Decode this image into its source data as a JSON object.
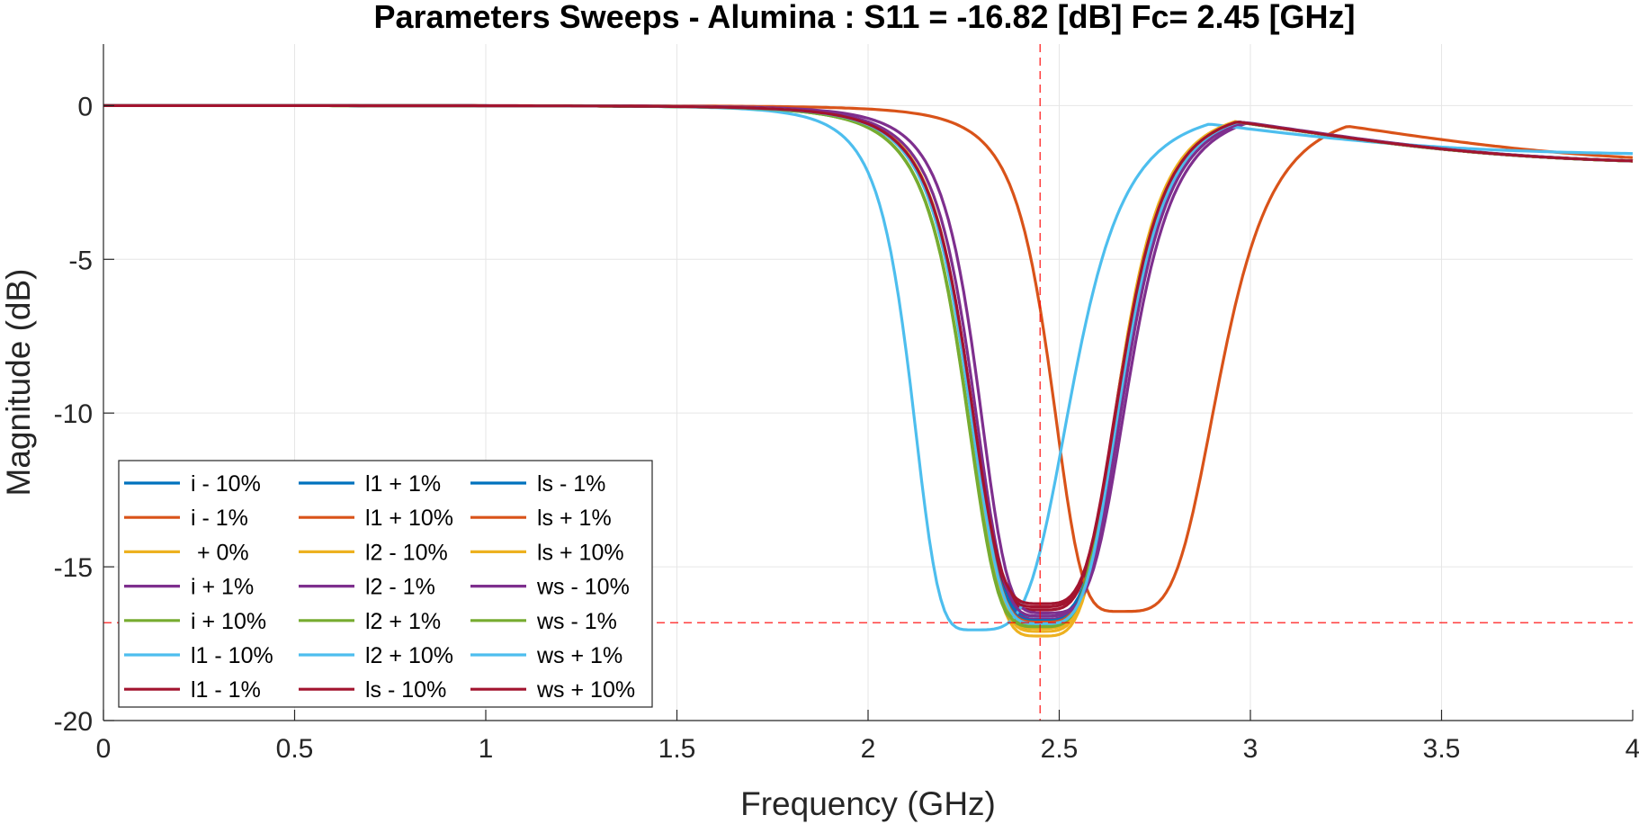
{
  "chart_data": {
    "type": "line",
    "title": "Parameters Sweeps - Alumina : S11 = -16.82 [dB] Fc= 2.45 [GHz]",
    "xlabel": "Frequency (GHz)",
    "ylabel": "Magnitude (dB)",
    "xlim": [
      0,
      4
    ],
    "ylim": [
      -20,
      2
    ],
    "xticks": [
      0,
      0.5,
      1,
      1.5,
      2,
      2.5,
      3,
      3.5,
      4
    ],
    "xtick_labels": [
      "0",
      "0.5",
      "1",
      "1.5",
      "2",
      "2.5",
      "3",
      "3.5",
      "4"
    ],
    "yticks": [
      0,
      -5,
      -10,
      -15,
      -20
    ],
    "ytick_labels": [
      "0",
      "-5",
      "-10",
      "-15",
      "-20"
    ],
    "grid": true,
    "legend_placement": "bottom-left",
    "legend_columns": 3,
    "reference_lines": {
      "fc": 2.45,
      "s11": -16.82,
      "color": "#ff0000"
    },
    "series": [
      {
        "name": "i - 10%",
        "color": "#0072BD",
        "shape": {
          "f0": 2.452,
          "min": -16.9,
          "wl": 0.2,
          "wr": 0.22,
          "far": 1.9
        }
      },
      {
        "name": "i - 1%",
        "color": "#D95319",
        "shape": {
          "f0": 2.452,
          "min": -16.85,
          "wl": 0.2,
          "wr": 0.22,
          "far": 1.9
        }
      },
      {
        "name": " + 0%",
        "color": "#EDB120",
        "shape": {
          "f0": 2.45,
          "min": -17.25,
          "wl": 0.195,
          "wr": 0.215,
          "far": 1.9
        }
      },
      {
        "name": "i + 1%",
        "color": "#7E2F8E",
        "shape": {
          "f0": 2.455,
          "min": -16.7,
          "wl": 0.2,
          "wr": 0.22,
          "far": 1.9
        }
      },
      {
        "name": "i + 10%",
        "color": "#77AC30",
        "shape": {
          "f0": 2.447,
          "min": -17.0,
          "wl": 0.205,
          "wr": 0.22,
          "far": 1.9
        }
      },
      {
        "name": "l1 - 10%",
        "color": "#4DBEEE",
        "shape": {
          "f0": 2.45,
          "min": -16.8,
          "wl": 0.2,
          "wr": 0.225,
          "far": 1.9
        }
      },
      {
        "name": "l1 - 1%",
        "color": "#A2142F",
        "shape": {
          "f0": 2.451,
          "min": -16.4,
          "wl": 0.2,
          "wr": 0.22,
          "far": 1.9
        }
      },
      {
        "name": "l1 + 1%",
        "color": "#0072BD",
        "shape": {
          "f0": 2.453,
          "min": -16.6,
          "wl": 0.2,
          "wr": 0.22,
          "far": 1.9
        }
      },
      {
        "name": "l1 + 10%",
        "color": "#D95319",
        "shape": {
          "f0": 2.66,
          "min": -16.45,
          "wl": 0.19,
          "wr": 0.27,
          "far": 1.9
        }
      },
      {
        "name": "l2 - 10%",
        "color": "#EDB120",
        "shape": {
          "f0": 2.45,
          "min": -17.0,
          "wl": 0.195,
          "wr": 0.215,
          "far": 1.9
        }
      },
      {
        "name": "l2 - 1%",
        "color": "#7E2F8E",
        "shape": {
          "f0": 2.462,
          "min": -16.5,
          "wl": 0.185,
          "wr": 0.23,
          "far": 1.9
        }
      },
      {
        "name": "l2 + 1%",
        "color": "#77AC30",
        "shape": {
          "f0": 2.447,
          "min": -16.9,
          "wl": 0.205,
          "wr": 0.22,
          "far": 1.9
        }
      },
      {
        "name": "l2 + 10%",
        "color": "#4DBEEE",
        "shape": {
          "f0": 2.275,
          "min": -17.05,
          "wl": 0.17,
          "wr": 0.27,
          "far": 1.6
        }
      },
      {
        "name": "ls - 10%",
        "color": "#A2142F",
        "shape": {
          "f0": 2.45,
          "min": -16.3,
          "wl": 0.2,
          "wr": 0.22,
          "far": 1.9
        }
      },
      {
        "name": "ls - 1%",
        "color": "#0072BD",
        "shape": {
          "f0": 2.452,
          "min": -16.75,
          "wl": 0.2,
          "wr": 0.22,
          "far": 1.9
        }
      },
      {
        "name": "ls + 1%",
        "color": "#D95319",
        "shape": {
          "f0": 2.452,
          "min": -16.8,
          "wl": 0.2,
          "wr": 0.22,
          "far": 1.9
        }
      },
      {
        "name": "ls + 10%",
        "color": "#EDB120",
        "shape": {
          "f0": 2.45,
          "min": -17.1,
          "wl": 0.195,
          "wr": 0.215,
          "far": 1.9
        }
      },
      {
        "name": "ws - 10%",
        "color": "#7E2F8E",
        "shape": {
          "f0": 2.458,
          "min": -16.6,
          "wl": 0.195,
          "wr": 0.225,
          "far": 1.9
        }
      },
      {
        "name": "ws - 1%",
        "color": "#77AC30",
        "shape": {
          "f0": 2.448,
          "min": -16.95,
          "wl": 0.205,
          "wr": 0.22,
          "far": 1.9
        }
      },
      {
        "name": "ws + 1%",
        "color": "#4DBEEE",
        "shape": {
          "f0": 2.452,
          "min": -16.85,
          "wl": 0.2,
          "wr": 0.22,
          "far": 1.9
        }
      },
      {
        "name": "ws + 10%",
        "color": "#A2142F",
        "shape": {
          "f0": 2.452,
          "min": -16.2,
          "wl": 0.2,
          "wr": 0.22,
          "far": 1.9
        }
      }
    ]
  }
}
